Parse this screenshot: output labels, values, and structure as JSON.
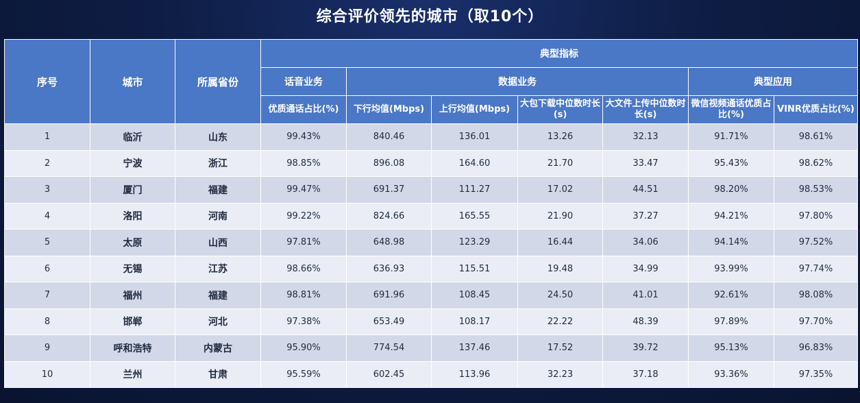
{
  "title": "综合评价领先的城市（取10个）",
  "header": {
    "seq": "序号",
    "city": "城市",
    "province": "所属省份",
    "typical_indicators": "典型指标",
    "voice_service": "话音业务",
    "data_service": "数据业务",
    "typical_apps": "典型应用",
    "columns": [
      "优质通话占比(%)",
      "下行均值(Mbps)",
      "上行均值(Mbps)",
      "大包下载中位数时长(s)",
      "大文件上传中位数时长(s)",
      "微信视频通话优质占比(%)",
      "VINR优质占比(%)"
    ]
  },
  "rows": [
    {
      "seq": "1",
      "city": "临沂",
      "province": "山东",
      "voice": "99.43%",
      "down": "840.46",
      "up": "136.01",
      "dl": "13.26",
      "ul": "32.13",
      "wx": "91.71%",
      "vinr": "98.61%"
    },
    {
      "seq": "2",
      "city": "宁波",
      "province": "浙江",
      "voice": "98.85%",
      "down": "896.08",
      "up": "164.60",
      "dl": "21.70",
      "ul": "33.47",
      "wx": "95.43%",
      "vinr": "98.62%"
    },
    {
      "seq": "3",
      "city": "厦门",
      "province": "福建",
      "voice": "99.47%",
      "down": "691.37",
      "up": "111.27",
      "dl": "17.02",
      "ul": "44.51",
      "wx": "98.20%",
      "vinr": "98.53%"
    },
    {
      "seq": "4",
      "city": "洛阳",
      "province": "河南",
      "voice": "99.22%",
      "down": "824.66",
      "up": "165.55",
      "dl": "21.90",
      "ul": "37.27",
      "wx": "94.21%",
      "vinr": "97.80%"
    },
    {
      "seq": "5",
      "city": "太原",
      "province": "山西",
      "voice": "97.81%",
      "down": "648.98",
      "up": "123.29",
      "dl": "16.44",
      "ul": "34.06",
      "wx": "94.14%",
      "vinr": "97.52%"
    },
    {
      "seq": "6",
      "city": "无锡",
      "province": "江苏",
      "voice": "98.66%",
      "down": "636.93",
      "up": "115.51",
      "dl": "19.48",
      "ul": "34.99",
      "wx": "93.99%",
      "vinr": "97.74%"
    },
    {
      "seq": "7",
      "city": "福州",
      "province": "福建",
      "voice": "98.81%",
      "down": "691.96",
      "up": "108.45",
      "dl": "24.50",
      "ul": "41.01",
      "wx": "92.61%",
      "vinr": "98.08%"
    },
    {
      "seq": "8",
      "city": "邯郸",
      "province": "河北",
      "voice": "97.38%",
      "down": "653.49",
      "up": "108.17",
      "dl": "22.22",
      "ul": "48.39",
      "wx": "97.89%",
      "vinr": "97.70%"
    },
    {
      "seq": "9",
      "city": "呼和浩特",
      "province": "内蒙古",
      "voice": "95.90%",
      "down": "774.54",
      "up": "137.46",
      "dl": "17.52",
      "ul": "39.72",
      "wx": "95.13%",
      "vinr": "96.83%"
    },
    {
      "seq": "10",
      "city": "兰州",
      "province": "甘肃",
      "voice": "95.59%",
      "down": "602.45",
      "up": "113.96",
      "dl": "32.23",
      "ul": "37.18",
      "wx": "93.36%",
      "vinr": "97.35%"
    }
  ],
  "colors": {
    "header_bg": "#4a77c6",
    "row_odd": "#d3d8e8",
    "row_even": "#eaedf5",
    "slide_bg": "#0e1d44"
  }
}
